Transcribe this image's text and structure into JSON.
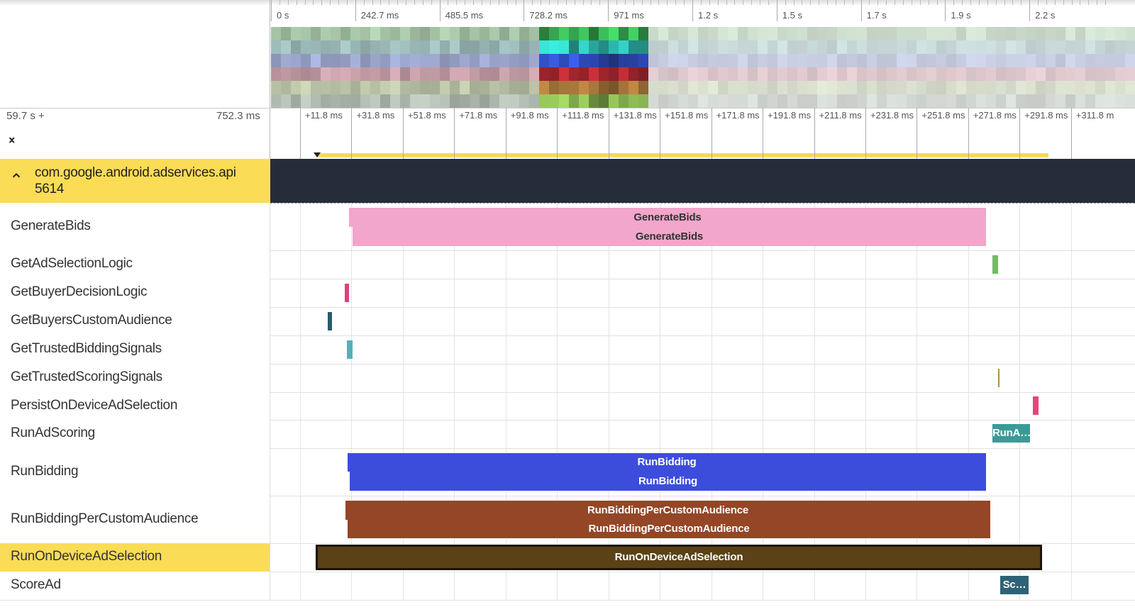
{
  "overview_ticks": [
    "0 s",
    "242.7 ms",
    "485.5 ms",
    "728.2 ms",
    "971 ms",
    "1.2 s",
    "1.5 s",
    "1.7 s",
    "1.9 s",
    "2.2 s"
  ],
  "time_header": {
    "offset": "59.7 s +",
    "span": "752.3 ms"
  },
  "detail_ticks": [
    "+11.8 ms",
    "+31.8 ms",
    "+51.8 ms",
    "+71.8 ms",
    "+91.8 ms",
    "+111.8 ms",
    "+131.8 ms",
    "+151.8 ms",
    "+171.8 ms",
    "+191.8 ms",
    "+211.8 ms",
    "+231.8 ms",
    "+251.8 ms",
    "+271.8 ms",
    "+291.8 ms",
    "+311.8 m"
  ],
  "process": {
    "name": "com.google.android.adservices.api",
    "pid": "5614"
  },
  "tracks": [
    {
      "name": "GenerateBids",
      "slices": [
        "GenerateBids",
        "GenerateBids"
      ]
    },
    {
      "name": "GetAdSelectionLogic"
    },
    {
      "name": "GetBuyerDecisionLogic"
    },
    {
      "name": "GetBuyersCustomAudience"
    },
    {
      "name": "GetTrustedBiddingSignals"
    },
    {
      "name": "GetTrustedScoringSignals"
    },
    {
      "name": "PersistOnDeviceAdSelection"
    },
    {
      "name": "RunAdScoring",
      "slices": [
        "RunA…"
      ]
    },
    {
      "name": "RunBidding",
      "slices": [
        "RunBidding",
        "RunBidding"
      ]
    },
    {
      "name": "RunBiddingPerCustomAudience",
      "slices": [
        "RunBiddingPerCustomAudience",
        "RunBiddingPerCustomAudience"
      ]
    },
    {
      "name": "RunOnDeviceAdSelection",
      "slices": [
        "RunOnDeviceAdSelection"
      ]
    },
    {
      "name": "ScoreAd",
      "slices": [
        "Sc…"
      ]
    }
  ]
}
